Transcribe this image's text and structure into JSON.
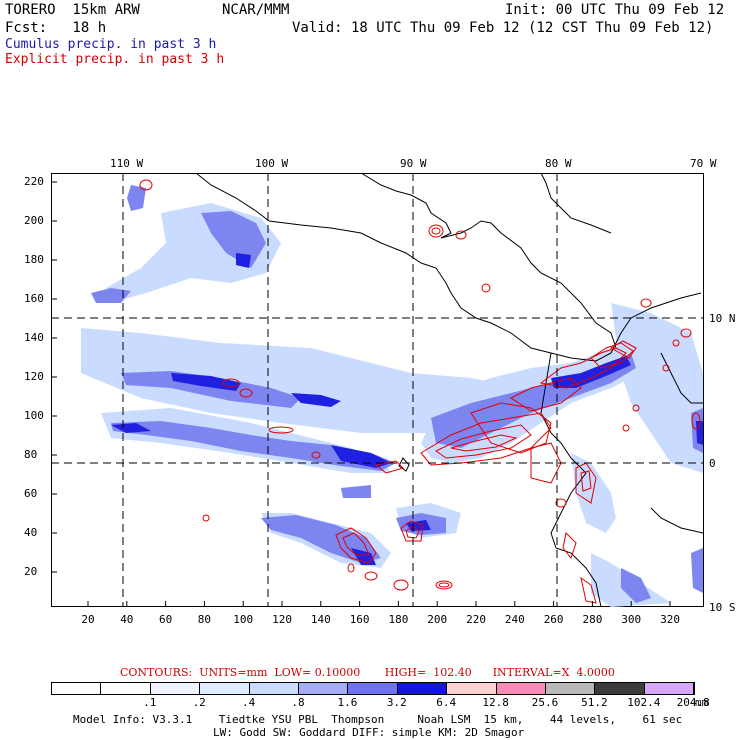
{
  "header": {
    "model": "TORERO  15km ARW",
    "center": "NCAR/MMM",
    "init": "Init: 00 UTC Thu 09 Feb 12",
    "fcst": "Fcst:   18 h",
    "valid": "Valid: 18 UTC Thu 09 Feb 12 (12 CST Thu 09 Feb 12)"
  },
  "legend_text": {
    "cumulus": "Cumulus precip. in past 3 h",
    "explicit": "Explicit precip. in past 3 h"
  },
  "map": {
    "lon_labels": [
      "110 W",
      "100 W",
      "90 W",
      "80 W",
      "70 W"
    ],
    "lat_labels": [
      "10 N",
      "0",
      "10 S"
    ],
    "y_ticks": [
      "220",
      "200",
      "180",
      "160",
      "140",
      "120",
      "100",
      "80",
      "60",
      "40",
      "20"
    ],
    "x_ticks": [
      "20",
      "40",
      "60",
      "80",
      "100",
      "120",
      "140",
      "160",
      "180",
      "200",
      "220",
      "240",
      "260",
      "280",
      "300",
      "320"
    ],
    "colors": {
      "precip_light": "#c9dcff",
      "precip_mid": "#7d86f0",
      "precip_heavy": "#2020e0",
      "contour": "#e00000",
      "grid": "#000000"
    }
  },
  "contour_info": {
    "text": "CONTOURS:  UNITS=mm  LOW= 0.10000       HIGH=  102.40      INTERVAL=X  4.0000"
  },
  "colorbar": {
    "labels": [
      ".1",
      ".2",
      ".4",
      ".8",
      "1.6",
      "3.2",
      "6.4",
      "12.8",
      "25.6",
      "51.2",
      "102.4",
      "204.8"
    ],
    "unit": "mm",
    "colors": [
      "#ffffff",
      "#ffffff",
      "#eef3ff",
      "#e0ecff",
      "#c9dcff",
      "#a6adf5",
      "#6e72ee",
      "#1414e6",
      "#ffd2d2",
      "#f78cb9",
      "#b9b9b9",
      "#3c3c3c",
      "#d8a8f8"
    ]
  },
  "footer": {
    "line1": "Model Info: V3.3.1    Tiedtke YSU PBL  Thompson     Noah LSM  15 km,    44 levels,    61 sec",
    "line2": "LW: Godd SW: Goddard DIFF: simple KM: 2D Smagor"
  }
}
